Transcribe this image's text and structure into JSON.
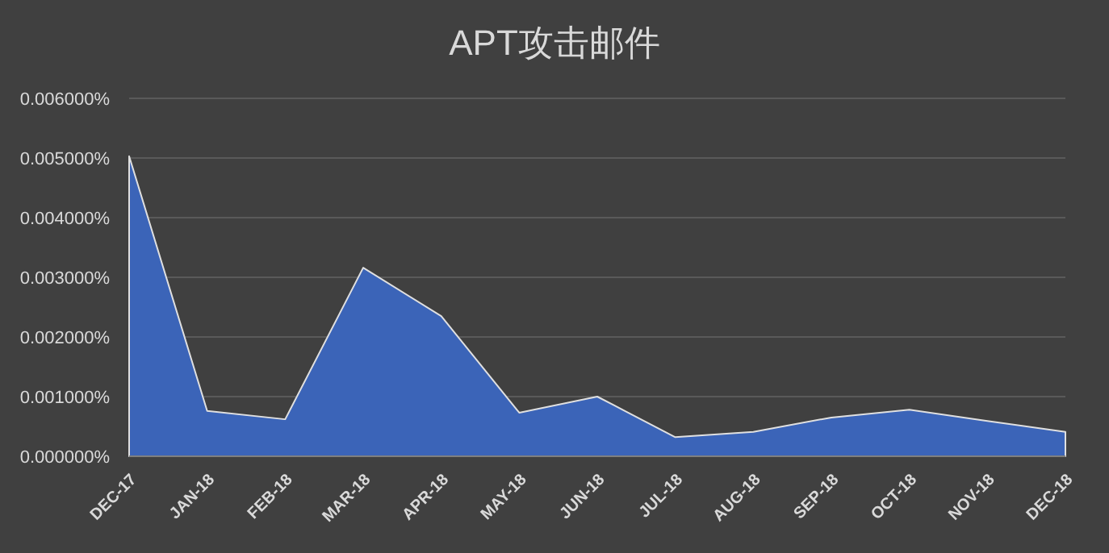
{
  "chart_data": {
    "type": "area",
    "title": "APT攻击邮件",
    "categories": [
      "DEC-17",
      "JAN-18",
      "FEB-18",
      "MAR-18",
      "APR-18",
      "MAY-18",
      "JUN-18",
      "JUL-18",
      "AUG-18",
      "SEP-18",
      "OCT-18",
      "NOV-18",
      "DEC-18"
    ],
    "series": [
      {
        "color": "#3b64b8",
        "values": [
          0.00503,
          0.00076,
          0.00062,
          0.00316,
          0.00235,
          0.00073,
          0.001,
          0.00032,
          0.00041,
          0.00065,
          0.00078,
          0.00059,
          0.00041
        ]
      }
    ],
    "ylim": [
      0,
      0.006
    ],
    "yticks": [
      {
        "value": 0,
        "label": "0.000000%"
      },
      {
        "value": 0.001,
        "label": "0.001000%"
      },
      {
        "value": 0.002,
        "label": "0.002000%"
      },
      {
        "value": 0.003,
        "label": "0.003000%"
      },
      {
        "value": 0.004,
        "label": "0.004000%"
      },
      {
        "value": 0.005,
        "label": "0.005000%"
      },
      {
        "value": 0.006,
        "label": "0.006000%"
      }
    ],
    "grid": "y"
  }
}
